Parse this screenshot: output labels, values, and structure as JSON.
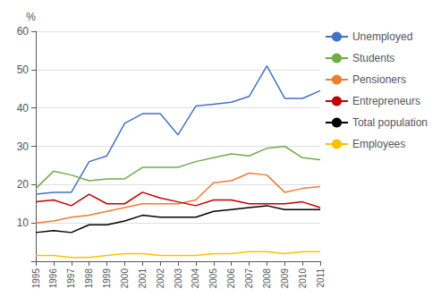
{
  "chart_data": {
    "type": "line",
    "ylabel": "%",
    "x": [
      1995,
      1996,
      1997,
      1998,
      1999,
      2000,
      2001,
      2002,
      2003,
      2004,
      2005,
      2006,
      2007,
      2008,
      2009,
      2010,
      2011
    ],
    "xlim": [
      1995,
      2011
    ],
    "xticks": [
      1995,
      1996,
      1997,
      1998,
      1999,
      2000,
      2001,
      2002,
      2003,
      2004,
      2005,
      2006,
      2007,
      2008,
      2009,
      2010,
      2011
    ],
    "series": [
      {
        "name": "Unemployed",
        "color": "#4472C4",
        "values": [
          17.5,
          18,
          18,
          26,
          27.5,
          36,
          38.5,
          38.5,
          33,
          40.5,
          41,
          41.5,
          43,
          51,
          42.5,
          42.5,
          44.5
        ]
      },
      {
        "name": "Students",
        "color": "#70AD47",
        "values": [
          19,
          23.5,
          22.5,
          21,
          21.5,
          21.5,
          24.5,
          24.5,
          24.5,
          26,
          27,
          28,
          27.5,
          29.5,
          30,
          27,
          26.5
        ]
      },
      {
        "name": "Pensioners",
        "color": "#ED7D31",
        "values": [
          10,
          10.5,
          11.5,
          12,
          13,
          14,
          15,
          15,
          15,
          16,
          20.5,
          21,
          23,
          22.5,
          18,
          19,
          19.5
        ]
      },
      {
        "name": "Entrepreneurs",
        "color": "#C00000",
        "values": [
          15.5,
          16,
          14.5,
          17.5,
          15,
          15,
          18,
          16.5,
          15.5,
          14.5,
          16,
          16,
          15,
          15,
          15,
          15.5,
          14
        ]
      },
      {
        "name": "Total population",
        "color": "#000000",
        "values": [
          7.5,
          8,
          7.5,
          9.5,
          9.5,
          10.5,
          12,
          11.5,
          11.5,
          11.5,
          13,
          13.5,
          14,
          14.5,
          13.5,
          13.5,
          13.5
        ]
      },
      {
        "name": "Employees",
        "color": "#FFC000",
        "values": [
          1.5,
          1.5,
          1,
          1,
          1.5,
          2,
          2,
          1.5,
          1.5,
          1.5,
          2,
          2,
          2.5,
          2.5,
          2,
          2.5,
          2.5
        ]
      }
    ],
    "ylim": [
      0,
      60
    ],
    "yticks": [
      {
        "value": 0,
        "label": ""
      },
      10,
      20,
      30,
      40,
      50,
      60
    ],
    "grid": true,
    "legend": "right"
  }
}
